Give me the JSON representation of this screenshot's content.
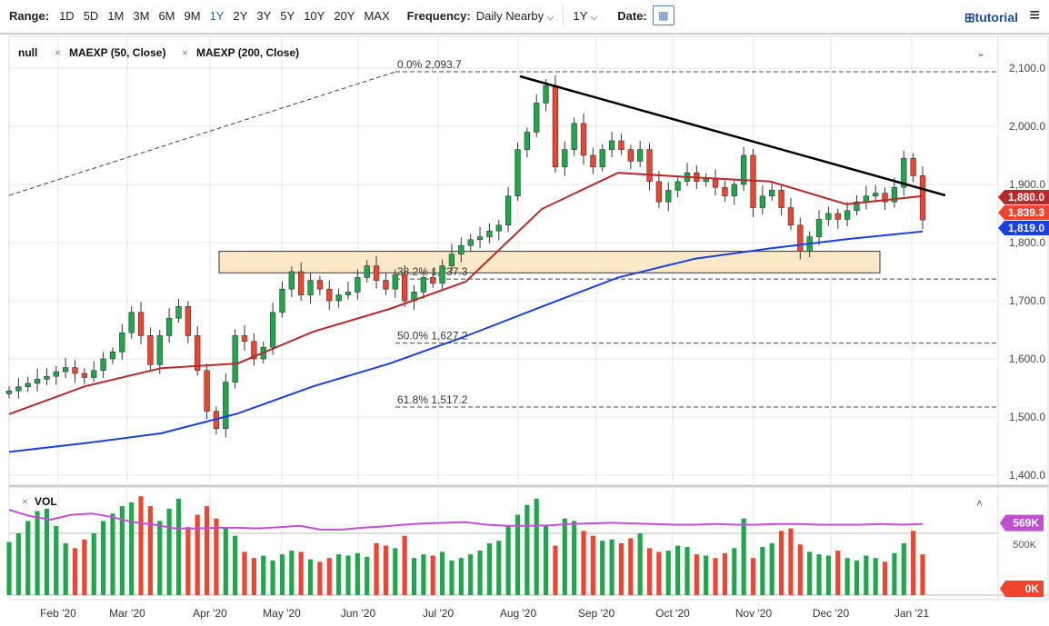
{
  "toolbar": {
    "range_label": "Range:",
    "ranges": [
      "1D",
      "5D",
      "1M",
      "3M",
      "6M",
      "9M",
      "1Y",
      "2Y",
      "3Y",
      "5Y",
      "10Y",
      "20Y",
      "MAX"
    ],
    "active_range": "1Y",
    "frequency_label": "Frequency:",
    "frequency_value": "Daily Nearby",
    "period_value": "1Y",
    "date_label": "Date:",
    "tutorial_label": "tutorial"
  },
  "legend": {
    "symbol": "null",
    "studies": [
      "MAEXP (50, Close)",
      "MAEXP (200, Close)"
    ],
    "volume_label": "VOL"
  },
  "colors": {
    "up": "#1fa84b",
    "down": "#ef4530",
    "ma50": "#b52a2a",
    "ma200": "#1a3fe0",
    "volma": "#c050d0",
    "box": "#fde9c8"
  },
  "chart_data": {
    "type": "candlestick",
    "ylim": [
      1400,
      2100
    ],
    "y_ticks": [
      "1,400.0",
      "1,500.0",
      "1,600.0",
      "1,700.0",
      "1,800.0",
      "1,900.0",
      "2,000.0",
      "2,100.0"
    ],
    "x_ticks": [
      "Feb '20",
      "Mar '20",
      "Apr '20",
      "May '20",
      "Jun '20",
      "Jul '20",
      "Aug '20",
      "Sep '20",
      "Oct '20",
      "Nov '20",
      "Dec '20",
      "Jan '21"
    ],
    "closes": [
      1545,
      1552,
      1558,
      1565,
      1570,
      1578,
      1585,
      1575,
      1568,
      1580,
      1600,
      1612,
      1645,
      1680,
      1640,
      1590,
      1640,
      1670,
      1690,
      1640,
      1580,
      1510,
      1480,
      1560,
      1640,
      1630,
      1600,
      1620,
      1680,
      1720,
      1750,
      1710,
      1735,
      1720,
      1700,
      1710,
      1715,
      1740,
      1760,
      1735,
      1720,
      1745,
      1700,
      1715,
      1740,
      1730,
      1760,
      1780,
      1795,
      1805,
      1810,
      1820,
      1830,
      1880,
      1960,
      1990,
      2040,
      2070,
      1930,
      1960,
      2005,
      1950,
      1930,
      1960,
      1975,
      1960,
      1940,
      1960,
      1905,
      1870,
      1890,
      1905,
      1920,
      1905,
      1910,
      1895,
      1880,
      1900,
      1950,
      1860,
      1880,
      1890,
      1860,
      1830,
      1785,
      1810,
      1840,
      1850,
      1840,
      1855,
      1870,
      1880,
      1885,
      1870,
      1895,
      1945,
      1915,
      1839
    ],
    "ma50": [
      1505,
      1553,
      1584,
      1592,
      1647,
      1686,
      1733,
      1858,
      1920,
      1912,
      1905,
      1866,
      1880
    ],
    "ma200": [
      1440,
      1455,
      1472,
      1506,
      1553,
      1592,
      1639,
      1690,
      1740,
      1772,
      1790,
      1806,
      1819
    ],
    "price_labels": {
      "ma50": "1,880.0",
      "last": "1,839.3",
      "ma200": "1,819.0"
    },
    "fibonacci": [
      {
        "label": "0.0% 2,093.7",
        "value": 2093.7
      },
      {
        "label": "38.2% 1,737.3",
        "value": 1737.3
      },
      {
        "label": "50.0% 1,627.2",
        "value": 1627.2
      },
      {
        "label": "61.8% 1,517.2",
        "value": 1517.2
      }
    ],
    "support_zone": [
      1748,
      1785
    ],
    "trendline": [
      2085,
      1880
    ],
    "volume": {
      "ylim_k": [
        0,
        800
      ],
      "ticks": [
        "0K",
        "500K"
      ],
      "ma_label": "569K",
      "ma_value_k": 569,
      "values_k": [
        430,
        500,
        600,
        680,
        700,
        560,
        420,
        380,
        450,
        500,
        600,
        660,
        720,
        750,
        800,
        720,
        600,
        700,
        780,
        550,
        650,
        720,
        620,
        540,
        480,
        350,
        300,
        320,
        280,
        330,
        360,
        350,
        290,
        270,
        300,
        330,
        320,
        340,
        310,
        420,
        400,
        380,
        480,
        300,
        330,
        320,
        350,
        280,
        300,
        330,
        360,
        420,
        440,
        560,
        650,
        730,
        780,
        560,
        400,
        620,
        600,
        520,
        480,
        440,
        450,
        420,
        460,
        500,
        380,
        350,
        360,
        400,
        390,
        330,
        320,
        300,
        340,
        380,
        620,
        300,
        390,
        420,
        520,
        540,
        410,
        350,
        330,
        320,
        360,
        300,
        280,
        320,
        300,
        270,
        340,
        420,
        520,
        330
      ],
      "ma_k": [
        690,
        640,
        610,
        650,
        660,
        630,
        590,
        570,
        540,
        540,
        545,
        545,
        540,
        550,
        560,
        530,
        530,
        545,
        555,
        570,
        580,
        585,
        590,
        570,
        560,
        560,
        565,
        575,
        580,
        585,
        580,
        575,
        570,
        570,
        575,
        570,
        570,
        575,
        575,
        570,
        570,
        570,
        575,
        570,
        575
      ]
    }
  }
}
